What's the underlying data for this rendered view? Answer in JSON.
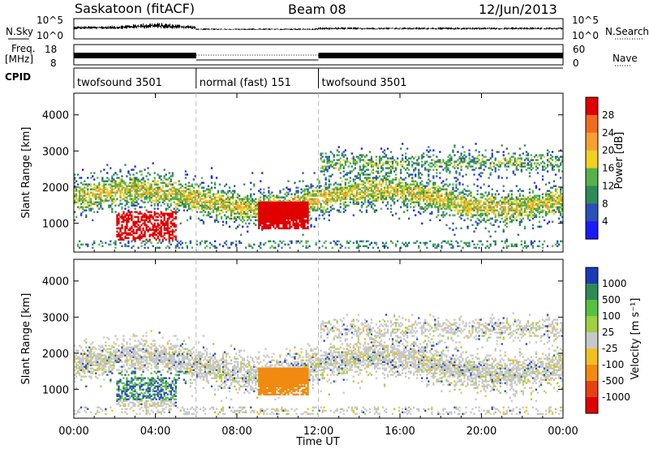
{
  "header": {
    "title": "Saskatoon (fitACF)",
    "beam": "Beam 08",
    "date": "12/Jun/2013"
  },
  "strips": {
    "nsky": {
      "label": "N.Sky",
      "tick_top": "10^5",
      "tick_bottom": "10^0",
      "right_label": "N.Search",
      "right_tick_top": "10^5",
      "right_tick_bottom": "10^0"
    },
    "freq": {
      "label": "Freq.",
      "unit": "[MHz]",
      "tick_top": "18",
      "tick_bottom": "8",
      "right_label": "Nave",
      "right_tick_top": "60",
      "right_tick_bottom": "0"
    },
    "cpid": {
      "label": "CPID",
      "segments": [
        {
          "label": "twofsound 3501",
          "start_hour": 0,
          "end_hour": 6
        },
        {
          "label": "normal (fast) 151",
          "start_hour": 6,
          "end_hour": 12
        },
        {
          "label": "twofsound 3501",
          "start_hour": 12,
          "end_hour": 24
        }
      ]
    }
  },
  "chart_data": [
    {
      "type": "heatmap",
      "title": "",
      "ylabel": "Slant Range [km]",
      "xlabel": "",
      "xlim": [
        0,
        24
      ],
      "ylim": [
        200,
        4600
      ],
      "yticks": [
        "1000",
        "2000",
        "3000",
        "4000"
      ],
      "colorbar": {
        "label": "Power [dB]",
        "ticks": [
          "4",
          "8",
          "12",
          "16",
          "20",
          "24",
          "28"
        ],
        "colors": [
          "#1a1aff",
          "#2a4fb8",
          "#2e8b57",
          "#55b24a",
          "#f0d020",
          "#f5a030",
          "#f06a20",
          "#e00000"
        ]
      },
      "echo_regions": [
        {
          "name": "main-band",
          "x": [
            0,
            24
          ],
          "y_center": [
            1500,
            1900
          ],
          "level": "mid"
        },
        {
          "name": "strong-dawn",
          "x": [
            2,
            5
          ],
          "y": [
            600,
            1200
          ],
          "level": "high"
        },
        {
          "name": "strong-midday",
          "x": [
            9,
            11.5
          ],
          "y": [
            800,
            1600
          ],
          "level": "high"
        },
        {
          "name": "upper-band",
          "x": [
            12,
            24
          ],
          "y": [
            2300,
            3000
          ],
          "level": "mid"
        }
      ]
    },
    {
      "type": "heatmap",
      "title": "",
      "ylabel": "Slant Range [km]",
      "xlabel": "Time UT",
      "xlim": [
        0,
        24
      ],
      "ylim": [
        200,
        4600
      ],
      "xticks": [
        "00:00",
        "04:00",
        "08:00",
        "12:00",
        "16:00",
        "20:00",
        "00:00"
      ],
      "yticks": [
        "1000",
        "2000",
        "3000",
        "4000"
      ],
      "colorbar": {
        "label": "Velocity [m s⁻¹]",
        "ticks": [
          "1000",
          "500",
          "100",
          "25",
          "-25",
          "-100",
          "-500",
          "-1000"
        ],
        "colors": [
          "#1a3ab8",
          "#2e8b57",
          "#58c040",
          "#9ed040",
          "#c8c8c8",
          "#f0c020",
          "#f08a10",
          "#e84010",
          "#e00000"
        ]
      },
      "echo_regions": [
        {
          "name": "ground-scatter-band",
          "x": [
            0,
            24
          ],
          "y_center": [
            1500,
            2100
          ],
          "velocity": "low"
        },
        {
          "name": "dawn-positive",
          "x": [
            1.5,
            5.5
          ],
          "y": [
            700,
            1500
          ],
          "velocity": "positive"
        },
        {
          "name": "midday-negative",
          "x": [
            9,
            11.5
          ],
          "y": [
            800,
            1600
          ],
          "velocity": "negative"
        }
      ]
    }
  ]
}
